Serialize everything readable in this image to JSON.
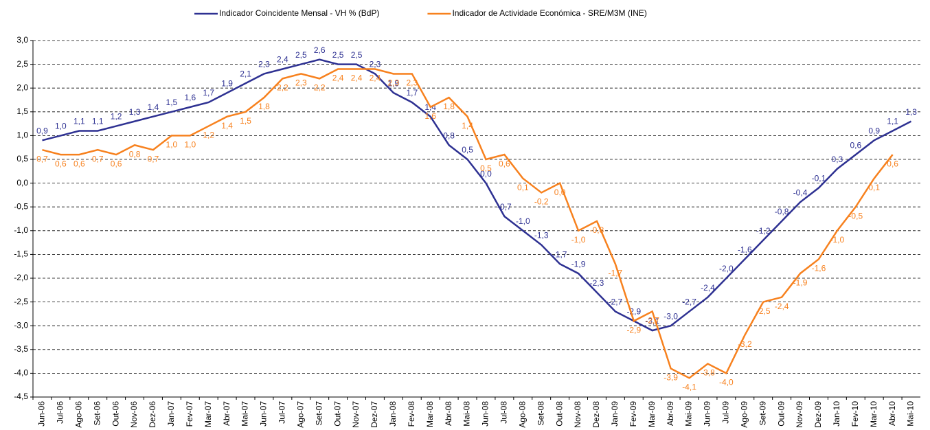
{
  "chart_data": {
    "type": "line",
    "categories": [
      "Jun-06",
      "Jul-06",
      "Ago-06",
      "Set-06",
      "Out-06",
      "Nov-06",
      "Dez-06",
      "Jan-07",
      "Fev-07",
      "Mar-07",
      "Abr-07",
      "Mai-07",
      "Jun-07",
      "Jul-07",
      "Ago-07",
      "Set-07",
      "Out-07",
      "Nov-07",
      "Dez-07",
      "Jan-08",
      "Fev-08",
      "Mar-08",
      "Abr-08",
      "Mai-08",
      "Jun-08",
      "Jul-08",
      "Ago-08",
      "Set-08",
      "Out-08",
      "Nov-08",
      "Dez-08",
      "Jan-09",
      "Fev-09",
      "Mar-09",
      "Abr-09",
      "Mai-09",
      "Jun-09",
      "Jul-09",
      "Ago-09",
      "Set-09",
      "Out-09",
      "Nov-09",
      "Dez-09",
      "Jan-10",
      "Fev-10",
      "Mar-10",
      "Abr-10",
      "Mai-10"
    ],
    "series": [
      {
        "name": "Indicador Coincidente Mensal - VH % (BdP)",
        "color": "#2e3192",
        "values": [
          0.9,
          1.0,
          1.1,
          1.1,
          1.2,
          1.3,
          1.4,
          1.5,
          1.6,
          1.7,
          1.9,
          2.1,
          2.3,
          2.4,
          2.5,
          2.6,
          2.5,
          2.5,
          2.3,
          1.9,
          1.7,
          1.4,
          0.8,
          0.5,
          0.0,
          -0.7,
          -1.0,
          -1.3,
          -1.7,
          -1.9,
          -2.3,
          -2.7,
          -2.9,
          -3.1,
          -3.0,
          -2.7,
          -2.4,
          -2.0,
          -1.6,
          -1.2,
          -0.8,
          -0.4,
          -0.1,
          0.3,
          0.6,
          0.9,
          1.1,
          1.3
        ],
        "value_labels": [
          "0,9",
          "1,0",
          "1,1",
          "1,1",
          "1,2",
          "1,3",
          "1,4",
          "1,5",
          "1,6",
          "1,7",
          "1,9",
          "2,1",
          "2,3",
          "2,4",
          "2,5",
          "2,6",
          "2,5",
          "2,5",
          "2,3",
          "1,9",
          "1,7",
          "1,4",
          "0,8",
          "0,5",
          "0,0",
          "-0,7",
          "-1,0",
          "-1,3",
          "-1,7",
          "-1,9",
          "-2,3",
          "-2,7",
          "-2,9",
          "-3,1",
          "-3,0",
          "-2,7",
          "-2,4",
          "-2,0",
          "-1,6",
          "-1,2",
          "-0,8",
          "-0,4",
          "-0,1",
          "0,3",
          "0,6",
          "0,9",
          "1,1",
          "1,3"
        ]
      },
      {
        "name": "Indicador de Actividade Económica - SRE/M3M (INE)",
        "color": "#f7811e",
        "values": [
          0.7,
          0.6,
          0.6,
          0.7,
          0.6,
          0.8,
          0.7,
          1.0,
          1.0,
          1.2,
          1.4,
          1.5,
          1.8,
          2.2,
          2.3,
          2.2,
          2.4,
          2.4,
          2.4,
          2.3,
          2.3,
          1.6,
          1.8,
          1.4,
          0.5,
          0.6,
          0.1,
          -0.2,
          0.0,
          -1.0,
          -0.8,
          -1.7,
          -2.9,
          -2.7,
          -3.9,
          -4.1,
          -3.8,
          -4.0,
          -3.2,
          -2.5,
          -2.4,
          -1.9,
          -1.6,
          -1.0,
          -0.5,
          0.1,
          0.6,
          null
        ],
        "value_labels": [
          "0,7",
          "0,6",
          "0,6",
          "0,7",
          "0,6",
          "0,8",
          "0,7",
          "1,0",
          "1,0",
          "1,2",
          "1,4",
          "1,5",
          "1,8",
          "2,2",
          "2,3",
          "2,2",
          "2,4",
          "2,4",
          "2,4",
          "2,3",
          "2,3",
          "1,6",
          "1,8",
          "1,4",
          "0,5",
          "0,6",
          "0,1",
          "-0,2",
          "0,0",
          "-1,0",
          "-0,8",
          "-1,7",
          "-2,9",
          "-2,7",
          "-3,9",
          "-4,1",
          "-3,8",
          "-4,0",
          "-3,2",
          "-2,5",
          "-2,4",
          "-1,9",
          "-1,6",
          "-1,0",
          "-0,5",
          "0,1",
          "0,6",
          null
        ]
      }
    ],
    "ylim": [
      -4.5,
      3.0
    ],
    "yticks": [
      {
        "value": 3.0,
        "label": "3,0"
      },
      {
        "value": 2.5,
        "label": "2,5"
      },
      {
        "value": 2.0,
        "label": "2,0"
      },
      {
        "value": 1.5,
        "label": "1,5"
      },
      {
        "value": 1.0,
        "label": "1,0"
      },
      {
        "value": 0.5,
        "label": "0,5"
      },
      {
        "value": 0.0,
        "label": "0,0"
      },
      {
        "value": -0.5,
        "label": "-0,5"
      },
      {
        "value": -1.0,
        "label": "-1,0"
      },
      {
        "value": -1.5,
        "label": "-1,5"
      },
      {
        "value": -2.0,
        "label": "-2,0"
      },
      {
        "value": -2.5,
        "label": "-2,5"
      },
      {
        "value": -3.0,
        "label": "-3,0"
      },
      {
        "value": -3.5,
        "label": "-3,5"
      },
      {
        "value": -4.0,
        "label": "-4,0"
      },
      {
        "value": -4.5,
        "label": "-4,5"
      }
    ],
    "grid": true,
    "legend": "top"
  }
}
